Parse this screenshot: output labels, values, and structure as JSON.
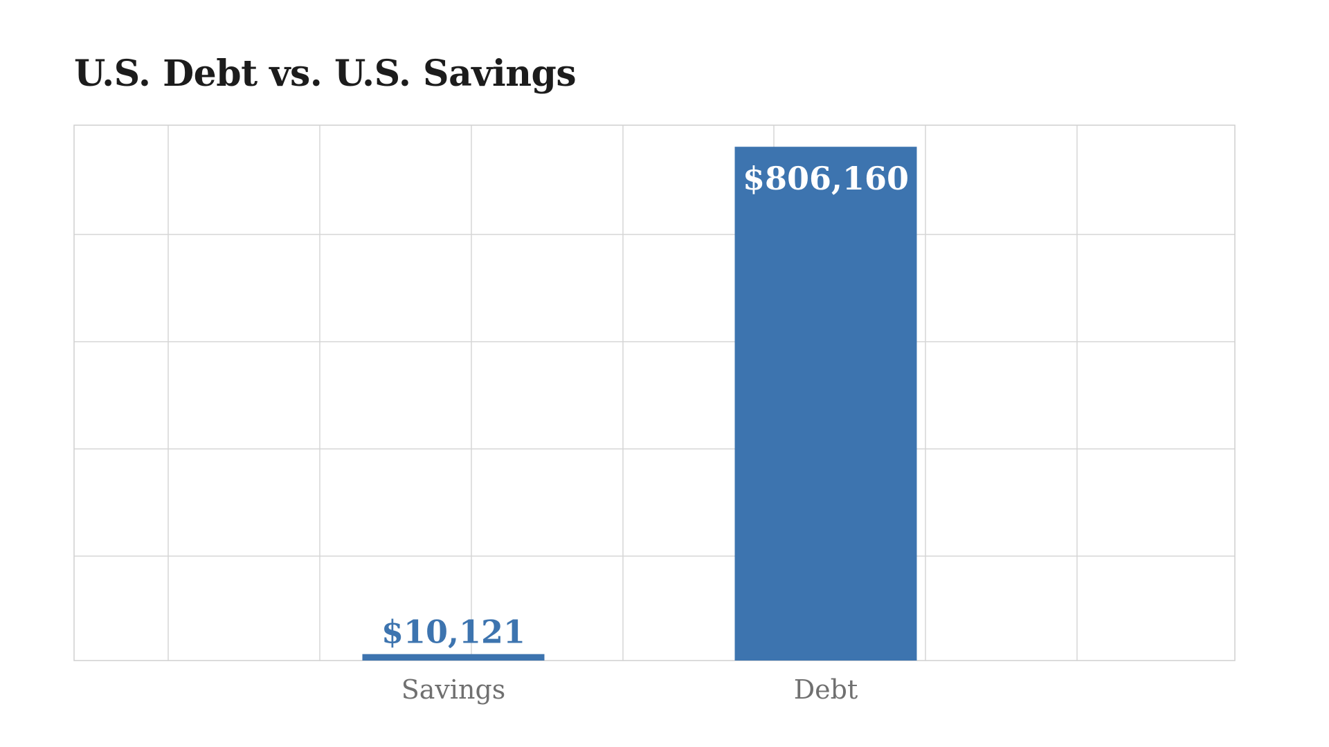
{
  "chart_data": {
    "type": "bar",
    "title": "U.S. Debt vs. U.S. Savings",
    "categories": [
      "Savings",
      "Debt"
    ],
    "values": [
      10121,
      806160
    ],
    "data_labels": [
      "$10,121",
      "$806,160"
    ],
    "xlabel": "",
    "ylabel": "",
    "ylim": [
      0,
      840000
    ],
    "grid": true,
    "legend": "none",
    "colors": {
      "bar": "#3d74af",
      "label_inside": "#ffffff",
      "label_outside": "#3d74af",
      "title": "#1c1c1c",
      "tick": "#707070",
      "grid": "#d6d6d6"
    }
  }
}
